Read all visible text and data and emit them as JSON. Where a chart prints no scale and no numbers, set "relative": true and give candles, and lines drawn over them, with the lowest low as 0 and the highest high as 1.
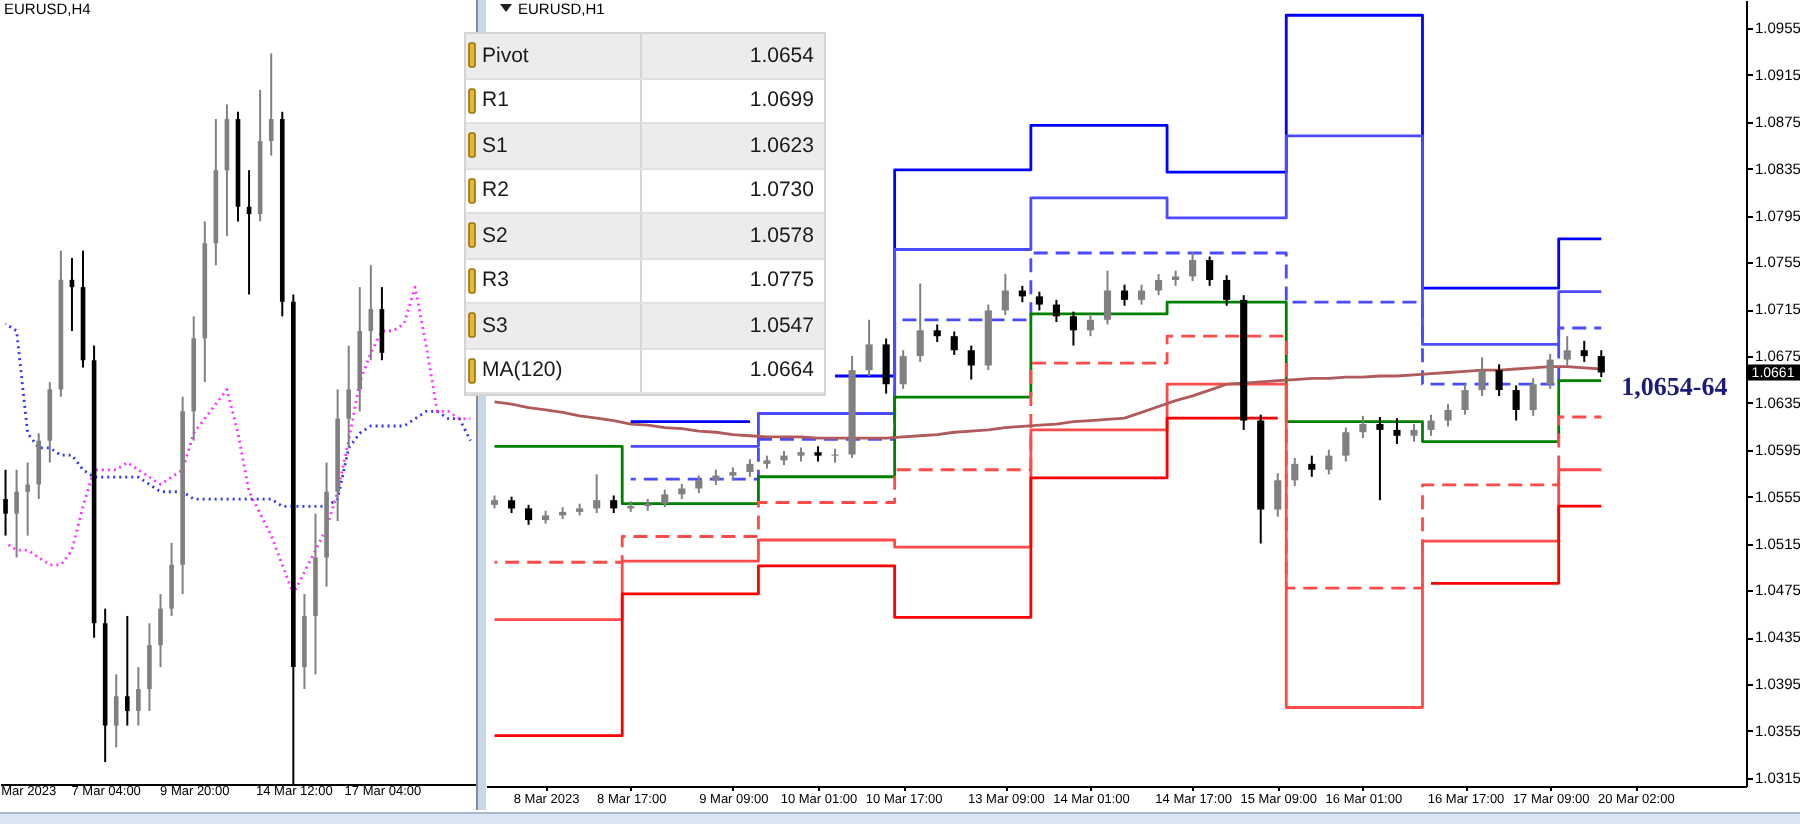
{
  "chart_data": [
    {
      "type": "candlestick",
      "title": "EURUSD,H4",
      "relative": true,
      "categories": [
        null,
        null,
        "Mar 2023",
        null,
        null,
        null,
        null,
        null,
        null,
        "7 Mar 04:00",
        null,
        null,
        null,
        null,
        null,
        null,
        null,
        "9 Mar 20:00",
        null,
        null,
        null,
        null,
        null,
        null,
        null,
        null,
        "14 Mar 12:00",
        null,
        null,
        null,
        null,
        null,
        null,
        null,
        "17 Mar 04:00",
        null,
        null,
        null,
        null,
        null,
        null,
        null,
        null
      ],
      "ohlc": [
        [
          0.39,
          0.43,
          0.34,
          0.37
        ],
        [
          0.37,
          0.43,
          0.31,
          0.4
        ],
        [
          0.4,
          0.44,
          0.34,
          0.41
        ],
        [
          0.41,
          0.48,
          0.39,
          0.47
        ],
        [
          0.47,
          0.55,
          0.44,
          0.54
        ],
        [
          0.54,
          0.73,
          0.53,
          0.69
        ],
        [
          0.69,
          0.72,
          0.62,
          0.68
        ],
        [
          0.68,
          0.73,
          0.57,
          0.58
        ],
        [
          0.58,
          0.6,
          0.2,
          0.22
        ],
        [
          0.22,
          0.24,
          0.03,
          0.08
        ],
        [
          0.08,
          0.15,
          0.05,
          0.12
        ],
        [
          0.12,
          0.23,
          0.08,
          0.1
        ],
        [
          0.1,
          0.16,
          0.08,
          0.13
        ],
        [
          0.13,
          0.22,
          0.1,
          0.19
        ],
        [
          0.19,
          0.26,
          0.16,
          0.24
        ],
        [
          0.24,
          0.33,
          0.23,
          0.3
        ],
        [
          0.3,
          0.53,
          0.26,
          0.51
        ],
        [
          0.51,
          0.64,
          0.47,
          0.61
        ],
        [
          0.61,
          0.77,
          0.55,
          0.74
        ],
        [
          0.74,
          0.91,
          0.71,
          0.84
        ],
        [
          0.84,
          0.93,
          0.75,
          0.91
        ],
        [
          0.91,
          0.92,
          0.77,
          0.79
        ],
        [
          0.79,
          0.84,
          0.67,
          0.78
        ],
        [
          0.78,
          0.95,
          0.77,
          0.88
        ],
        [
          0.88,
          1,
          0.86,
          0.91
        ],
        [
          0.91,
          0.92,
          0.64,
          0.66
        ],
        [
          0.66,
          0.67,
          0,
          0.16
        ],
        [
          0.16,
          0.26,
          0.13,
          0.23
        ],
        [
          0.23,
          0.37,
          0.15,
          0.31
        ],
        [
          0.31,
          0.44,
          0.27,
          0.4
        ],
        [
          0.4,
          0.54,
          0.36,
          0.5
        ],
        [
          0.5,
          0.6,
          0.46,
          0.54
        ],
        [
          0.54,
          0.68,
          0.51,
          0.62
        ],
        [
          0.62,
          0.71,
          0.58,
          0.65
        ],
        [
          0.65,
          0.68,
          0.58,
          0.59
        ],
        null,
        null,
        null,
        null,
        null,
        null,
        null,
        null
      ],
      "colors": [
        "#000000",
        "#808080",
        "#808080",
        "#808080",
        "#808080",
        "#808080",
        "#000000",
        "#000000",
        "#000000",
        "#000000",
        "#808080",
        "#000000",
        "#808080",
        "#808080",
        "#808080",
        "#808080",
        "#808080",
        "#808080",
        "#808080",
        "#808080",
        "#808080",
        "#000000",
        "#000000",
        "#808080",
        "#808080",
        "#000000",
        "#000000",
        "#808080",
        "#808080",
        "#808080",
        "#808080",
        "#808080",
        "#808080",
        "#808080",
        "#000000",
        null,
        null,
        null,
        null,
        null,
        null,
        null,
        null
      ],
      "series": [
        {
          "type": "line",
          "color": "#3333ff",
          "line_style": "dotted",
          "values": [
            0.63,
            0.62,
            0.48,
            0.46,
            0.46,
            0.45,
            0.45,
            0.43,
            0.42,
            0.42,
            0.42,
            0.42,
            0.42,
            0.41,
            0.4,
            0.4,
            0.4,
            0.39,
            0.39,
            0.39,
            0.39,
            0.39,
            0.39,
            0.39,
            0.39,
            0.38,
            0.38,
            0.38,
            0.38,
            0.38,
            0.39,
            0.46,
            0.48,
            0.49,
            0.49,
            0.49,
            0.49,
            0.5,
            0.51,
            0.51,
            0.5,
            0.5,
            0.47
          ]
        },
        {
          "type": "line",
          "color": "#ff33ff",
          "line_style": "dotted",
          "values": [
            0.33,
            0.32,
            0.32,
            0.31,
            0.3,
            0.3,
            0.32,
            0.38,
            0.43,
            0.43,
            0.43,
            0.44,
            0.43,
            0.42,
            0.41,
            0.42,
            0.43,
            0.48,
            0.5,
            0.52,
            0.54,
            0.48,
            0.4,
            0.37,
            0.34,
            0.3,
            0.26,
            0.29,
            0.32,
            0.35,
            0.4,
            0.47,
            0.55,
            0.59,
            0.62,
            0.62,
            0.63,
            0.68,
            0.6,
            0.51,
            0.51,
            0.5,
            0.5
          ]
        }
      ]
    },
    {
      "type": "candlestick",
      "title": "EURUSD,H1",
      "categories": [
        null,
        null,
        null,
        "8 Mar 2023",
        null,
        null,
        null,
        null,
        "8 Mar 17:00",
        null,
        null,
        null,
        null,
        null,
        "9 Mar 09:00",
        null,
        null,
        null,
        null,
        "10 Mar 01:00",
        null,
        null,
        null,
        null,
        "10 Mar 17:00",
        null,
        null,
        null,
        null,
        null,
        "13 Mar 09:00",
        null,
        null,
        null,
        null,
        "14 Mar 01:00",
        null,
        null,
        null,
        null,
        null,
        "14 Mar 17:00",
        null,
        null,
        null,
        null,
        "15 Mar 09:00",
        null,
        null,
        null,
        null,
        "16 Mar 01:00",
        null,
        null,
        null,
        null,
        null,
        "16 Mar 17:00",
        null,
        null,
        null,
        null,
        "17 Mar 09:00",
        null,
        null,
        null,
        null,
        "20 Mar 02:00",
        null,
        null,
        null,
        null,
        null,
        null
      ],
      "ohlc": [
        [
          1.0548,
          1.0556,
          1.0545,
          1.0552
        ],
        [
          1.0552,
          1.0555,
          1.0541,
          1.0545
        ],
        [
          1.0545,
          1.0548,
          1.0531,
          1.0535
        ],
        [
          1.0535,
          1.0543,
          1.0532,
          1.0539
        ],
        [
          1.0539,
          1.0546,
          1.0536,
          1.0542
        ],
        [
          1.0542,
          1.0549,
          1.0539,
          1.0545
        ],
        [
          1.0545,
          1.0574,
          1.0541,
          1.0552
        ],
        [
          1.0552,
          1.0556,
          1.0541,
          1.0545
        ],
        [
          1.0545,
          1.0551,
          1.0542,
          1.0547
        ],
        [
          1.0547,
          1.0553,
          1.0543,
          1.0549
        ],
        [
          1.0549,
          1.0561,
          1.0546,
          1.0557
        ],
        [
          1.0557,
          1.0566,
          1.0553,
          1.0562
        ],
        [
          1.0562,
          1.0573,
          1.0558,
          1.0569
        ],
        [
          1.0569,
          1.0578,
          1.0565,
          1.0573
        ],
        [
          1.0573,
          1.058,
          1.0569,
          1.0576
        ],
        [
          1.0576,
          1.0587,
          1.0572,
          1.0583
        ],
        [
          1.0583,
          1.059,
          1.0579,
          1.0586
        ],
        [
          1.0586,
          1.0594,
          1.0582,
          1.059
        ],
        [
          1.059,
          1.0597,
          1.0585,
          1.0593
        ],
        [
          1.0593,
          1.0598,
          1.0585,
          1.059
        ],
        [
          1.059,
          1.0596,
          1.0584,
          1.0591
        ],
        [
          1.0591,
          1.0675,
          1.0588,
          1.0663
        ],
        [
          1.0663,
          1.0706,
          1.0658,
          1.0685
        ],
        [
          1.0685,
          1.069,
          1.0643,
          1.0651
        ],
        [
          1.0651,
          1.068,
          1.0647,
          1.0675
        ],
        [
          1.0675,
          1.0737,
          1.067,
          1.0697
        ],
        [
          1.0697,
          1.0702,
          1.0687,
          1.0692
        ],
        [
          1.0692,
          1.0696,
          1.0676,
          1.068
        ],
        [
          1.068,
          1.0684,
          1.0655,
          1.0667
        ],
        [
          1.0667,
          1.0719,
          1.0663,
          1.0714
        ],
        [
          1.0714,
          1.0745,
          1.071,
          1.0731
        ],
        [
          1.0731,
          1.0735,
          1.0721,
          1.0726
        ],
        [
          1.0726,
          1.073,
          1.0714,
          1.0719
        ],
        [
          1.0719,
          1.0723,
          1.0704,
          1.0709
        ],
        [
          1.0709,
          1.0713,
          1.0684,
          1.0697
        ],
        [
          1.0697,
          1.0711,
          1.0692,
          1.0706
        ],
        [
          1.0706,
          1.0748,
          1.0702,
          1.0731
        ],
        [
          1.0731,
          1.0736,
          1.0718,
          1.0723
        ],
        [
          1.0723,
          1.0736,
          1.0719,
          1.0731
        ],
        [
          1.0731,
          1.0745,
          1.0727,
          1.074
        ],
        [
          1.074,
          1.0748,
          1.0735,
          1.0743
        ],
        [
          1.0743,
          1.0764,
          1.0739,
          1.0757
        ],
        [
          1.0757,
          1.076,
          1.0735,
          1.074
        ],
        [
          1.074,
          1.0744,
          1.0718,
          1.0723
        ],
        [
          1.0723,
          1.0727,
          1.0612,
          1.062
        ],
        [
          1.062,
          1.0625,
          1.0515,
          1.0544
        ],
        [
          1.0544,
          1.0575,
          1.0538,
          1.0569
        ],
        [
          1.0569,
          1.0588,
          1.0564,
          1.0583
        ],
        [
          1.0583,
          1.059,
          1.0572,
          1.0578
        ],
        [
          1.0578,
          1.0595,
          1.0574,
          1.059
        ],
        [
          1.059,
          1.0614,
          1.0585,
          1.061
        ],
        [
          1.061,
          1.0624,
          1.0605,
          1.0617
        ],
        [
          1.0617,
          1.0623,
          1.0552,
          1.0612
        ],
        [
          1.0612,
          1.0622,
          1.06,
          1.0607
        ],
        [
          1.0607,
          1.0617,
          1.0602,
          1.0612
        ],
        [
          1.0612,
          1.0625,
          1.0607,
          1.062
        ],
        [
          1.062,
          1.0634,
          1.0615,
          1.0629
        ],
        [
          1.0629,
          1.0651,
          1.0625,
          1.0646
        ],
        [
          1.0646,
          1.0674,
          1.0641,
          1.0663
        ],
        [
          1.0663,
          1.0668,
          1.0641,
          1.0646
        ],
        [
          1.0646,
          1.065,
          1.062,
          1.0629
        ],
        [
          1.0629,
          1.0656,
          1.0624,
          1.0651
        ],
        [
          1.0651,
          1.0677,
          1.0647,
          1.0672
        ],
        [
          1.0672,
          1.0692,
          1.0667,
          1.068
        ],
        [
          1.068,
          1.0688,
          1.067,
          1.0675
        ],
        [
          1.0675,
          1.068,
          1.0657,
          1.0661
        ],
        null,
        null,
        null,
        null,
        null,
        null,
        null,
        null
      ],
      "colors": [
        "#808080",
        "#000000",
        "#000000",
        "#808080",
        "#808080",
        "#808080",
        "#808080",
        "#000000",
        "#808080",
        "#808080",
        "#808080",
        "#808080",
        "#808080",
        "#808080",
        "#808080",
        "#808080",
        "#808080",
        "#808080",
        "#808080",
        "#000000",
        "#808080",
        "#808080",
        "#808080",
        "#000000",
        "#808080",
        "#808080",
        "#000000",
        "#000000",
        "#000000",
        "#808080",
        "#808080",
        "#000000",
        "#000000",
        "#000000",
        "#000000",
        "#808080",
        "#808080",
        "#000000",
        "#808080",
        "#808080",
        "#808080",
        "#808080",
        "#000000",
        "#000000",
        "#000000",
        "#000000",
        "#808080",
        "#808080",
        "#000000",
        "#808080",
        "#808080",
        "#808080",
        "#000000",
        "#000000",
        "#808080",
        "#808080",
        "#808080",
        "#808080",
        "#808080",
        "#000000",
        "#000000",
        "#808080",
        "#808080",
        "#808080",
        "#000000",
        "#000000",
        null,
        null,
        null,
        null,
        null,
        null,
        null,
        null
      ],
      "series": [
        {
          "type": "step",
          "color": "#0000ff",
          "values": [
            null,
            null,
            null,
            null,
            null,
            null,
            null,
            null,
            1.0619,
            1.0619,
            1.0619,
            1.0619,
            1.0619,
            1.0619,
            1.0619,
            1.0619,
            null,
            null,
            null,
            null,
            1.0658,
            1.0658,
            1.0658,
            1.0658,
            1.0834,
            1.0834,
            1.0834,
            1.0834,
            1.0834,
            1.0834,
            1.0834,
            1.0834,
            1.0872,
            1.0872,
            1.0872,
            1.0872,
            1.0872,
            1.0872,
            1.0872,
            1.0872,
            1.0832,
            1.0832,
            1.0832,
            1.0832,
            1.0832,
            1.0832,
            1.0832,
            1.0966,
            1.0966,
            1.0966,
            1.0966,
            1.0966,
            1.0966,
            1.0966,
            1.0966,
            1.0733,
            1.0733,
            1.0733,
            1.0733,
            1.0733,
            1.0733,
            1.0733,
            1.0733,
            1.0775,
            1.0775,
            1.0775,
            null,
            null,
            null,
            null,
            null,
            null,
            null,
            null
          ]
        },
        {
          "type": "step",
          "color": "#4a4aff",
          "values": [
            null,
            null,
            null,
            null,
            null,
            null,
            null,
            null,
            1.0598,
            1.0598,
            1.0598,
            1.0598,
            1.0598,
            1.0598,
            1.0598,
            1.0598,
            1.0626,
            1.0626,
            1.0626,
            1.0626,
            1.0626,
            1.0626,
            1.0626,
            1.0626,
            1.0766,
            1.0766,
            1.0766,
            1.0766,
            1.0766,
            1.0766,
            1.0766,
            1.0766,
            1.081,
            1.081,
            1.081,
            1.081,
            1.081,
            1.081,
            1.081,
            1.081,
            1.0793,
            1.0793,
            1.0793,
            1.0793,
            1.0793,
            1.0793,
            1.0793,
            1.0863,
            1.0863,
            1.0863,
            1.0863,
            1.0863,
            1.0863,
            1.0863,
            1.0863,
            1.0685,
            1.0685,
            1.0685,
            1.0685,
            1.0685,
            1.0685,
            1.0685,
            1.0685,
            1.073,
            1.073,
            1.073,
            null,
            null,
            null,
            null,
            null,
            null,
            null,
            null
          ]
        },
        {
          "type": "step",
          "color": "#4a4aff",
          "line_style": "dashed",
          "values": [
            null,
            null,
            null,
            null,
            null,
            null,
            null,
            null,
            1.057,
            1.057,
            1.057,
            1.057,
            1.057,
            1.057,
            1.057,
            1.057,
            1.0604,
            1.0604,
            1.0604,
            1.0604,
            1.0604,
            1.0604,
            1.0604,
            1.0604,
            1.0706,
            1.0706,
            1.0706,
            1.0706,
            1.0706,
            1.0706,
            1.0706,
            1.0706,
            1.0763,
            1.0763,
            1.0763,
            1.0763,
            1.0763,
            1.0763,
            1.0763,
            1.0763,
            1.0763,
            1.0763,
            1.0763,
            1.0763,
            1.0763,
            1.0763,
            1.0763,
            1.0721,
            1.0721,
            1.0721,
            1.0721,
            1.0721,
            1.0721,
            1.0721,
            1.0721,
            1.0651,
            1.0651,
            1.0651,
            1.0651,
            1.0651,
            1.0651,
            1.0651,
            1.0651,
            1.0699,
            1.0699,
            1.0699,
            null,
            null,
            null,
            null,
            null,
            null,
            null,
            null
          ]
        },
        {
          "type": "step",
          "color": "#008000",
          "values": [
            1.0598,
            1.0598,
            1.0598,
            1.0598,
            1.0598,
            1.0598,
            1.0598,
            1.0598,
            1.0549,
            1.0549,
            1.0549,
            1.0549,
            1.0549,
            1.0549,
            1.0549,
            1.0549,
            1.0572,
            1.0572,
            1.0572,
            1.0572,
            1.0572,
            1.0572,
            1.0572,
            1.0572,
            1.064,
            1.064,
            1.064,
            1.064,
            1.064,
            1.064,
            1.064,
            1.064,
            1.0711,
            1.0711,
            1.0711,
            1.0711,
            1.0711,
            1.0711,
            1.0711,
            1.0711,
            1.0721,
            1.0721,
            1.0721,
            1.0721,
            1.0721,
            1.0721,
            1.0721,
            1.0619,
            1.0619,
            1.0619,
            1.0619,
            1.0619,
            1.0619,
            1.0619,
            1.0619,
            1.0602,
            1.0602,
            1.0602,
            1.0602,
            1.0602,
            1.0602,
            1.0602,
            1.0602,
            1.0654,
            1.0654,
            1.0654,
            null,
            null,
            null,
            null,
            null,
            null,
            null,
            null
          ]
        },
        {
          "type": "step",
          "color": "#ff4a4a",
          "line_style": "dashed",
          "values": [
            1.0499,
            1.0499,
            1.0499,
            1.0499,
            1.0499,
            1.0499,
            1.0499,
            1.0499,
            1.0521,
            1.0521,
            1.0521,
            1.0521,
            1.0521,
            1.0521,
            1.0521,
            1.0521,
            1.055,
            1.055,
            1.055,
            1.055,
            1.055,
            1.055,
            1.055,
            1.055,
            1.0578,
            1.0578,
            1.0578,
            1.0578,
            1.0578,
            1.0578,
            1.0578,
            1.0578,
            1.0669,
            1.0669,
            1.0669,
            1.0669,
            1.0669,
            1.0669,
            1.0669,
            1.0669,
            1.0692,
            1.0692,
            1.0692,
            1.0692,
            1.0692,
            1.0692,
            1.0692,
            1.0477,
            1.0477,
            1.0477,
            1.0477,
            1.0477,
            1.0477,
            1.0477,
            1.0477,
            1.0565,
            1.0565,
            1.0565,
            1.0565,
            1.0565,
            1.0565,
            1.0565,
            1.0565,
            1.0623,
            1.0623,
            1.0623,
            null,
            null,
            null,
            null,
            null,
            null,
            null,
            null
          ]
        },
        {
          "type": "step",
          "color": "#ff4a4a",
          "values": [
            1.045,
            1.045,
            1.045,
            1.045,
            1.045,
            1.045,
            1.045,
            1.045,
            1.05,
            1.05,
            1.05,
            1.05,
            1.05,
            1.05,
            1.05,
            1.05,
            1.0518,
            1.0518,
            1.0518,
            1.0518,
            1.0518,
            1.0518,
            1.0518,
            1.0518,
            1.0512,
            1.0512,
            1.0512,
            1.0512,
            1.0512,
            1.0512,
            1.0512,
            1.0512,
            1.0612,
            1.0612,
            1.0612,
            1.0612,
            1.0612,
            1.0612,
            1.0612,
            1.0612,
            1.0651,
            1.0651,
            1.0651,
            1.0651,
            1.0651,
            1.0651,
            1.0651,
            1.0375,
            1.0375,
            1.0375,
            1.0375,
            1.0375,
            1.0375,
            1.0375,
            1.0375,
            1.0517,
            1.0517,
            1.0517,
            1.0517,
            1.0517,
            1.0517,
            1.0517,
            1.0517,
            1.0578,
            1.0578,
            1.0578,
            null,
            null,
            null,
            null,
            null,
            null,
            null,
            null
          ]
        },
        {
          "type": "step",
          "color": "#ff0000",
          "values": [
            1.0351,
            1.0351,
            1.0351,
            1.0351,
            1.0351,
            1.0351,
            1.0351,
            1.0351,
            1.0472,
            1.0472,
            1.0472,
            1.0472,
            1.0472,
            1.0472,
            1.0472,
            1.0472,
            1.0496,
            1.0496,
            1.0496,
            1.0496,
            1.0496,
            1.0496,
            1.0496,
            1.0496,
            1.0452,
            1.0452,
            1.0452,
            1.0452,
            1.0452,
            1.0452,
            1.0452,
            1.0452,
            1.0571,
            1.0571,
            1.0571,
            1.0571,
            1.0571,
            1.0571,
            1.0571,
            1.0571,
            1.0622,
            1.0622,
            1.0622,
            1.0622,
            1.0622,
            1.0622,
            1.0622,
            null,
            null,
            null,
            null,
            null,
            null,
            null,
            null,
            1.0481,
            1.0481,
            1.0481,
            1.0481,
            1.0481,
            1.0481,
            1.0481,
            1.0481,
            1.0547,
            1.0547,
            1.0547,
            null,
            null,
            null,
            null,
            null,
            null,
            null,
            null
          ]
        },
        {
          "type": "line",
          "color": "#b05a5a",
          "values": [
            1.0636,
            1.0634,
            1.0631,
            1.0629,
            1.0627,
            1.0624,
            1.0622,
            1.062,
            1.0617,
            1.0616,
            1.0614,
            1.0613,
            1.0611,
            1.061,
            1.0608,
            1.0607,
            1.0606,
            1.0606,
            1.0606,
            1.0605,
            1.0605,
            1.0605,
            1.0605,
            1.0605,
            1.0606,
            1.0607,
            1.0608,
            1.061,
            1.0611,
            1.0612,
            1.0614,
            1.0615,
            1.0616,
            1.0617,
            1.0619,
            1.062,
            1.0621,
            1.0622,
            1.0627,
            1.0632,
            1.0637,
            1.0641,
            1.0646,
            1.0651,
            1.0652,
            1.0653,
            1.0654,
            1.0655,
            1.0656,
            1.0656,
            1.0657,
            1.0657,
            1.0658,
            1.0658,
            1.0659,
            1.066,
            1.0661,
            1.0662,
            1.0663,
            1.0663,
            1.0664,
            1.0665,
            1.0666,
            1.0666,
            1.0665,
            1.0664,
            null,
            null,
            null,
            null,
            null,
            null,
            null,
            null
          ]
        }
      ],
      "ylim": [
        1.0308,
        1.0979
      ],
      "yticks": [
        1.0315,
        1.0355,
        1.0395,
        1.0435,
        1.0475,
        1.0515,
        1.0555,
        1.0595,
        1.0635,
        1.0675,
        1.0715,
        1.0755,
        1.0795,
        1.0835,
        1.0875,
        1.0915,
        1.0955
      ],
      "annotations": [
        "Pivot",
        "1.0654",
        "R1",
        "1.0699",
        "S1",
        "1.0623",
        "R2",
        "1.0730",
        "S2",
        "1.0578",
        "R3",
        "1.0775",
        "S3",
        "1.0547",
        "MA(120)",
        "1.0664",
        "1,0654-64",
        "1.0661"
      ]
    }
  ]
}
